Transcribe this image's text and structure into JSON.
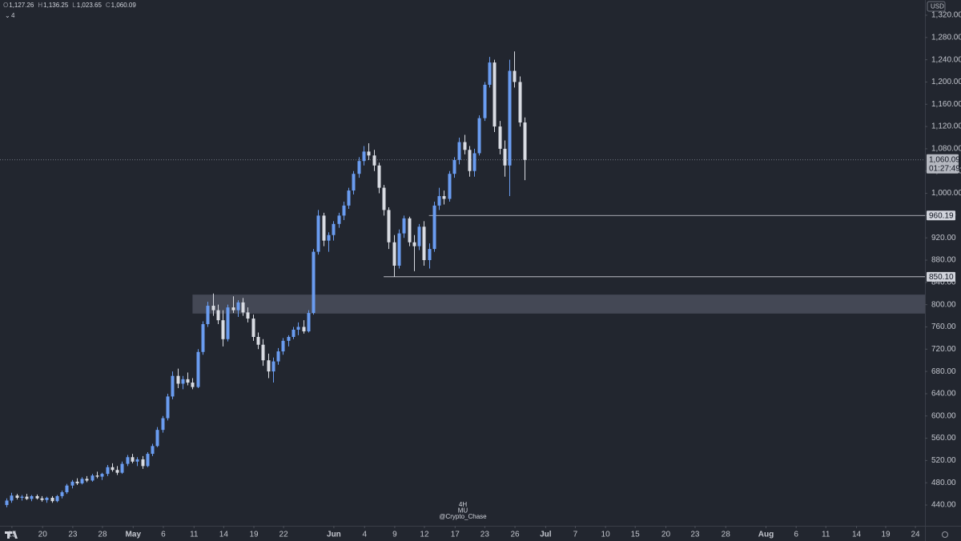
{
  "chart_data": {
    "type": "candlestick",
    "currency": "USD",
    "interval_badge": "4",
    "legend": [
      {
        "key": "O",
        "value": "1,127.26"
      },
      {
        "key": "H",
        "value": "1,136.25"
      },
      {
        "key": "L",
        "value": "1,023.65"
      },
      {
        "key": "C",
        "value": "1,060.09"
      }
    ],
    "watermark": [
      "4H",
      "MU",
      "@Crypto_Chase"
    ],
    "up_color": "#6a9cf0",
    "down_color": "#d9dce3",
    "ylim": [
      402.7,
      1347.3
    ],
    "xlim": [
      -1.27,
      182.6
    ],
    "yticks": [
      {
        "value": 440,
        "label": "440.00"
      },
      {
        "value": 480,
        "label": "480.00"
      },
      {
        "value": 520,
        "label": "520.00"
      },
      {
        "value": 560,
        "label": "560.00"
      },
      {
        "value": 600,
        "label": "600.00"
      },
      {
        "value": 640,
        "label": "640.00"
      },
      {
        "value": 680,
        "label": "680.00"
      },
      {
        "value": 720,
        "label": "720.00"
      },
      {
        "value": 760,
        "label": "760.00"
      },
      {
        "value": 800,
        "label": "800.00"
      },
      {
        "value": 840,
        "label": "840.00"
      },
      {
        "value": 880,
        "label": "880.00"
      },
      {
        "value": 920,
        "label": "920.00"
      },
      {
        "value": 960,
        "label": "960.00"
      },
      {
        "value": 1000,
        "label": "1,000.00"
      },
      {
        "value": 1040,
        "label": "1,040.00"
      },
      {
        "value": 1080,
        "label": "1,080.00"
      },
      {
        "value": 1120,
        "label": "1,120.00"
      },
      {
        "value": 1160,
        "label": "1,160.00"
      },
      {
        "value": 1200,
        "label": "1,200.00"
      },
      {
        "value": 1240,
        "label": "1,240.00"
      },
      {
        "value": 1280,
        "label": "1,280.00"
      },
      {
        "value": 1320,
        "label": "1,320.00"
      }
    ],
    "xticks": [
      {
        "value": 1.1,
        "label": "15"
      },
      {
        "value": 7.2,
        "label": "20"
      },
      {
        "value": 13.2,
        "label": "23"
      },
      {
        "value": 19.1,
        "label": "28"
      },
      {
        "value": 25.2,
        "label": "May"
      },
      {
        "value": 31.2,
        "label": "6"
      },
      {
        "value": 37.3,
        "label": "11"
      },
      {
        "value": 43.2,
        "label": "14"
      },
      {
        "value": 49.2,
        "label": "19"
      },
      {
        "value": 55.1,
        "label": "22"
      },
      {
        "value": 65.1,
        "label": "Jun"
      },
      {
        "value": 71.2,
        "label": "4"
      },
      {
        "value": 77.2,
        "label": "9"
      },
      {
        "value": 83.1,
        "label": "12"
      },
      {
        "value": 89.2,
        "label": "17"
      },
      {
        "value": 95.1,
        "label": "23"
      },
      {
        "value": 101.1,
        "label": "26"
      },
      {
        "value": 107.2,
        "label": "Jul"
      },
      {
        "value": 113.1,
        "label": "7"
      },
      {
        "value": 119.1,
        "label": "10"
      },
      {
        "value": 125,
        "label": "15"
      },
      {
        "value": 131.1,
        "label": "20"
      },
      {
        "value": 136.9,
        "label": "23"
      },
      {
        "value": 143,
        "label": "28"
      },
      {
        "value": 151,
        "label": "Aug"
      },
      {
        "value": 157,
        "label": "6"
      },
      {
        "value": 162.9,
        "label": "11"
      },
      {
        "value": 169,
        "label": "14"
      },
      {
        "value": 174.8,
        "label": "19"
      },
      {
        "value": 180.7,
        "label": "24"
      }
    ],
    "zone": {
      "low": 784,
      "high": 818,
      "start_index": 37
    },
    "levels": [
      {
        "value": 960.19,
        "label": "960.19",
        "start_index": 84
      },
      {
        "value": 850.1,
        "label": "850.10",
        "start_index": 75
      }
    ],
    "last_price": {
      "value": 1060.09,
      "label": "1,060.09",
      "countdown": "01:27:49"
    },
    "candles": [
      [
        440,
        452,
        436,
        448
      ],
      [
        448,
        462,
        444,
        457
      ],
      [
        457,
        460,
        450,
        453
      ],
      [
        453,
        458,
        448,
        455
      ],
      [
        455,
        460,
        449,
        451
      ],
      [
        451,
        458,
        447,
        456
      ],
      [
        456,
        459,
        450,
        452
      ],
      [
        452,
        456,
        446,
        449
      ],
      [
        449,
        455,
        444,
        453
      ],
      [
        453,
        456,
        444,
        447
      ],
      [
        447,
        458,
        445,
        456
      ],
      [
        456,
        466,
        452,
        463
      ],
      [
        463,
        478,
        460,
        475
      ],
      [
        475,
        485,
        470,
        482
      ],
      [
        482,
        488,
        476,
        479
      ],
      [
        479,
        490,
        477,
        487
      ],
      [
        487,
        492,
        481,
        484
      ],
      [
        484,
        496,
        482,
        493
      ],
      [
        493,
        500,
        488,
        491
      ],
      [
        491,
        498,
        485,
        496
      ],
      [
        496,
        512,
        492,
        508
      ],
      [
        508,
        515,
        500,
        503
      ],
      [
        503,
        510,
        494,
        498
      ],
      [
        498,
        518,
        496,
        514
      ],
      [
        514,
        530,
        510,
        526
      ],
      [
        526,
        532,
        515,
        518
      ],
      [
        518,
        526,
        510,
        522
      ],
      [
        522,
        528,
        505,
        510
      ],
      [
        510,
        535,
        508,
        532
      ],
      [
        532,
        550,
        528,
        546
      ],
      [
        546,
        580,
        544,
        575
      ],
      [
        575,
        600,
        570,
        596
      ],
      [
        596,
        640,
        592,
        635
      ],
      [
        635,
        680,
        630,
        672
      ],
      [
        672,
        685,
        650,
        658
      ],
      [
        658,
        672,
        648,
        666
      ],
      [
        666,
        678,
        655,
        660
      ],
      [
        660,
        668,
        648,
        652
      ],
      [
        652,
        720,
        650,
        715
      ],
      [
        715,
        770,
        710,
        765
      ],
      [
        765,
        805,
        760,
        798
      ],
      [
        798,
        820,
        780,
        790
      ],
      [
        790,
        800,
        765,
        772
      ],
      [
        772,
        790,
        725,
        738
      ],
      [
        738,
        800,
        734,
        795
      ],
      [
        795,
        815,
        785,
        790
      ],
      [
        790,
        808,
        778,
        804
      ],
      [
        804,
        812,
        780,
        786
      ],
      [
        786,
        795,
        768,
        775
      ],
      [
        775,
        782,
        735,
        742
      ],
      [
        742,
        750,
        720,
        728
      ],
      [
        728,
        738,
        690,
        700
      ],
      [
        700,
        712,
        668,
        680
      ],
      [
        680,
        705,
        660,
        698
      ],
      [
        698,
        722,
        692,
        716
      ],
      [
        716,
        740,
        710,
        735
      ],
      [
        735,
        745,
        725,
        742
      ],
      [
        742,
        760,
        738,
        755
      ],
      [
        755,
        768,
        745,
        760
      ],
      [
        760,
        772,
        748,
        752
      ],
      [
        752,
        790,
        750,
        785
      ],
      [
        785,
        900,
        782,
        895
      ],
      [
        895,
        970,
        890,
        960
      ],
      [
        960,
        965,
        905,
        915
      ],
      [
        915,
        930,
        895,
        925
      ],
      [
        925,
        950,
        915,
        945
      ],
      [
        945,
        965,
        938,
        960
      ],
      [
        960,
        985,
        952,
        978
      ],
      [
        978,
        1010,
        972,
        1005
      ],
      [
        1005,
        1040,
        998,
        1035
      ],
      [
        1035,
        1065,
        1028,
        1058
      ],
      [
        1058,
        1085,
        1050,
        1075
      ],
      [
        1075,
        1090,
        1060,
        1068
      ],
      [
        1068,
        1078,
        1040,
        1050
      ],
      [
        1050,
        1055,
        1000,
        1010
      ],
      [
        1010,
        1015,
        960,
        970
      ],
      [
        970,
        975,
        900,
        912
      ],
      [
        912,
        925,
        850,
        870
      ],
      [
        870,
        935,
        865,
        928
      ],
      [
        928,
        960,
        920,
        955
      ],
      [
        955,
        958,
        905,
        912
      ],
      [
        912,
        925,
        860,
        905
      ],
      [
        905,
        945,
        898,
        940
      ],
      [
        940,
        950,
        870,
        880
      ],
      [
        880,
        910,
        865,
        900
      ],
      [
        900,
        985,
        895,
        978
      ],
      [
        978,
        1010,
        970,
        995
      ],
      [
        995,
        1005,
        980,
        990
      ],
      [
        990,
        1040,
        985,
        1035
      ],
      [
        1035,
        1065,
        1028,
        1060
      ],
      [
        1060,
        1100,
        1052,
        1092
      ],
      [
        1092,
        1105,
        1070,
        1078
      ],
      [
        1078,
        1085,
        1030,
        1040
      ],
      [
        1040,
        1080,
        1030,
        1072
      ],
      [
        1072,
        1140,
        1068,
        1135
      ],
      [
        1135,
        1200,
        1130,
        1195
      ],
      [
        1195,
        1245,
        1190,
        1235
      ],
      [
        1235,
        1240,
        1110,
        1120
      ],
      [
        1120,
        1130,
        1070,
        1080
      ],
      [
        1080,
        1095,
        1030,
        1050
      ],
      [
        1050,
        1240,
        995,
        1220
      ],
      [
        1220,
        1255,
        1190,
        1200
      ],
      [
        1200,
        1210,
        1120,
        1127.26
      ],
      [
        1127.26,
        1136.25,
        1023.65,
        1060.09
      ]
    ]
  }
}
